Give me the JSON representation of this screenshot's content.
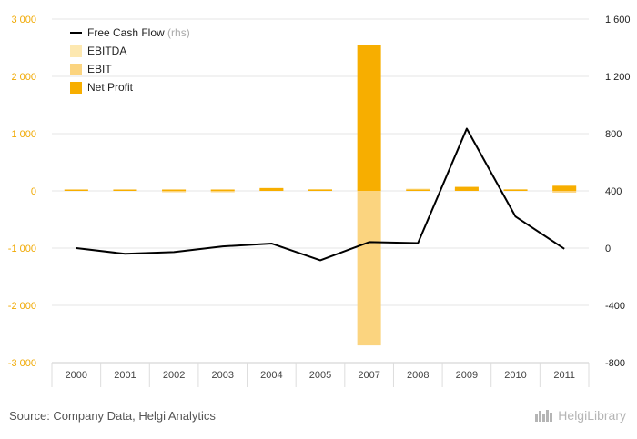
{
  "chart_data": {
    "type": "bar",
    "categories": [
      "2000",
      "2001",
      "2002",
      "2003",
      "2004",
      "2005",
      "2007",
      "2008",
      "2009",
      "2010",
      "2011"
    ],
    "series": [
      {
        "name": "EBITDA",
        "axis": "left",
        "values": [
          15,
          10,
          5,
          10,
          40,
          30,
          30,
          40,
          60,
          30,
          80
        ]
      },
      {
        "name": "EBIT",
        "axis": "left",
        "values": [
          5,
          0,
          -10,
          -5,
          20,
          15,
          -2700,
          15,
          35,
          10,
          -30
        ]
      },
      {
        "name": "Net Profit",
        "axis": "left",
        "values": [
          10,
          5,
          0,
          5,
          50,
          20,
          2540,
          10,
          70,
          15,
          90
        ]
      },
      {
        "name": "Free Cash Flow",
        "name_suffix": "(rhs)",
        "axis": "right",
        "type": "line",
        "values": [
          0,
          -40,
          -28,
          12,
          32,
          -85,
          42,
          35,
          835,
          220,
          -5
        ]
      }
    ],
    "yleft": {
      "ylim": [
        -3000,
        3000
      ],
      "ticks": [
        -3000,
        -2000,
        -1000,
        0,
        1000,
        2000,
        3000
      ],
      "tick_labels": [
        "-3 000",
        "-2 000",
        "-1 000",
        "0",
        "1 000",
        "2 000",
        "3 000"
      ]
    },
    "yright": {
      "ylim": [
        -800,
        1600
      ],
      "ticks": [
        -800,
        -400,
        0,
        400,
        800,
        1200,
        1600
      ],
      "tick_labels": [
        "-800",
        "-400",
        "0",
        "400",
        "800",
        "1 200",
        "1 600"
      ]
    },
    "colors": {
      "EBITDA": "#fde8b0",
      "EBIT": "#fbd47f",
      "Net Profit": "#f7ae00",
      "Free Cash Flow": "#000000",
      "left_axis": "#f0a800",
      "grid": "#e6e6e6"
    },
    "legend_position": "top-left",
    "grid": true
  },
  "footer": {
    "source": "Source: Company Data, Helgi Analytics",
    "logo": "HelgiLibrary"
  }
}
